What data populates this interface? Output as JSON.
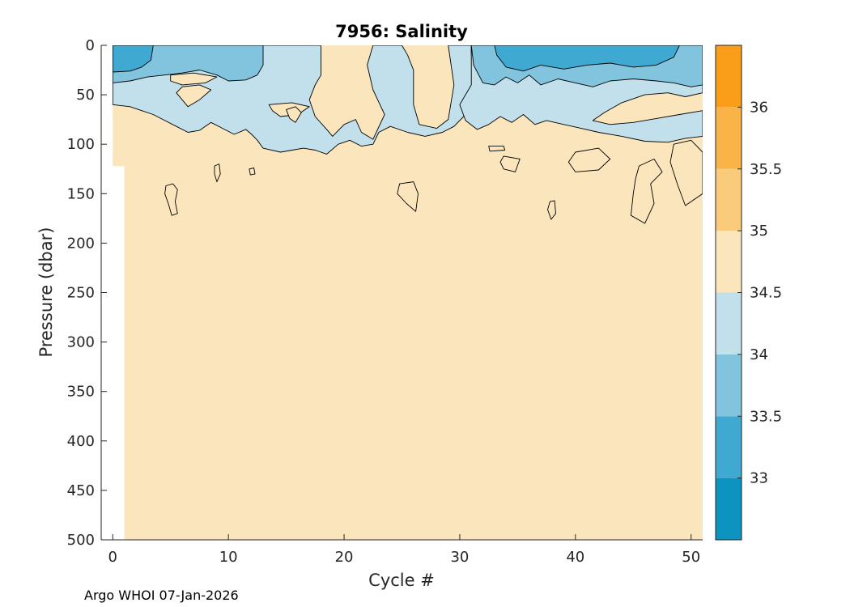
{
  "chart_data": {
    "type": "contour",
    "title": "7956:  Salinity",
    "xlabel": "Cycle #",
    "ylabel": "Pressure (dbar)",
    "footer": "Argo WHOI 07-Jan-2026",
    "xlim": [
      -1,
      51
    ],
    "ylim": [
      0,
      500
    ],
    "y_reversed": true,
    "xticks": [
      0,
      10,
      20,
      30,
      40,
      50
    ],
    "yticks": [
      0,
      50,
      100,
      150,
      200,
      250,
      300,
      350,
      400,
      450,
      500
    ],
    "colorbar": {
      "range": [
        32.5,
        36.5
      ],
      "ticks": [
        33,
        33.5,
        34,
        34.5,
        35,
        35.5,
        36
      ],
      "tick_labels": [
        "33",
        "33.5",
        "34",
        "34.5",
        "35",
        "35.5",
        "36"
      ],
      "levels": [
        {
          "from": 32.5,
          "to": 33.0,
          "color": "#0c93c0"
        },
        {
          "from": 33.0,
          "to": 33.5,
          "color": "#40a9d1"
        },
        {
          "from": 33.5,
          "to": 34.0,
          "color": "#82c4de"
        },
        {
          "from": 34.0,
          "to": 34.5,
          "color": "#c1e0eb"
        },
        {
          "from": 34.5,
          "to": 35.0,
          "color": "#fbe5bd"
        },
        {
          "from": 35.0,
          "to": 35.5,
          "color": "#f9cb7b"
        },
        {
          "from": 35.5,
          "to": 36.0,
          "color": "#f9b347"
        },
        {
          "from": 36.0,
          "to": 36.5,
          "color": "#fa9d19"
        }
      ]
    },
    "data_extent": {
      "cycles": [
        0,
        51
      ],
      "max_pressure": 500,
      "cycle0_max_pressure": 122
    },
    "background_level": "34.5-35",
    "regions": [
      {
        "label": "fresh surface cap, early cycles",
        "level": "33-33.5",
        "cycles": [
          0,
          2.5
        ],
        "pressure": [
          0,
          25
        ]
      },
      {
        "label": "low-salinity surface layer",
        "level": "33.5-34",
        "cycles": [
          0,
          13
        ],
        "pressure": [
          0,
          40
        ]
      },
      {
        "label": "transition layer",
        "level": "34-34.5",
        "cycles": [
          0,
          23
        ],
        "pressure": [
          0,
          100
        ]
      },
      {
        "label": "fresh surface cap, late cycles",
        "level": "33-33.5",
        "cycles": [
          34,
          49
        ],
        "pressure": [
          0,
          30
        ]
      },
      {
        "label": "low-salinity layer, late cycles",
        "level": "33.5-34",
        "cycles": [
          31,
          51
        ],
        "pressure": [
          0,
          45
        ]
      },
      {
        "label": "transition layer, late cycles",
        "level": "34-34.5",
        "cycles": [
          29,
          51
        ],
        "pressure": [
          0,
          95
        ]
      }
    ]
  }
}
